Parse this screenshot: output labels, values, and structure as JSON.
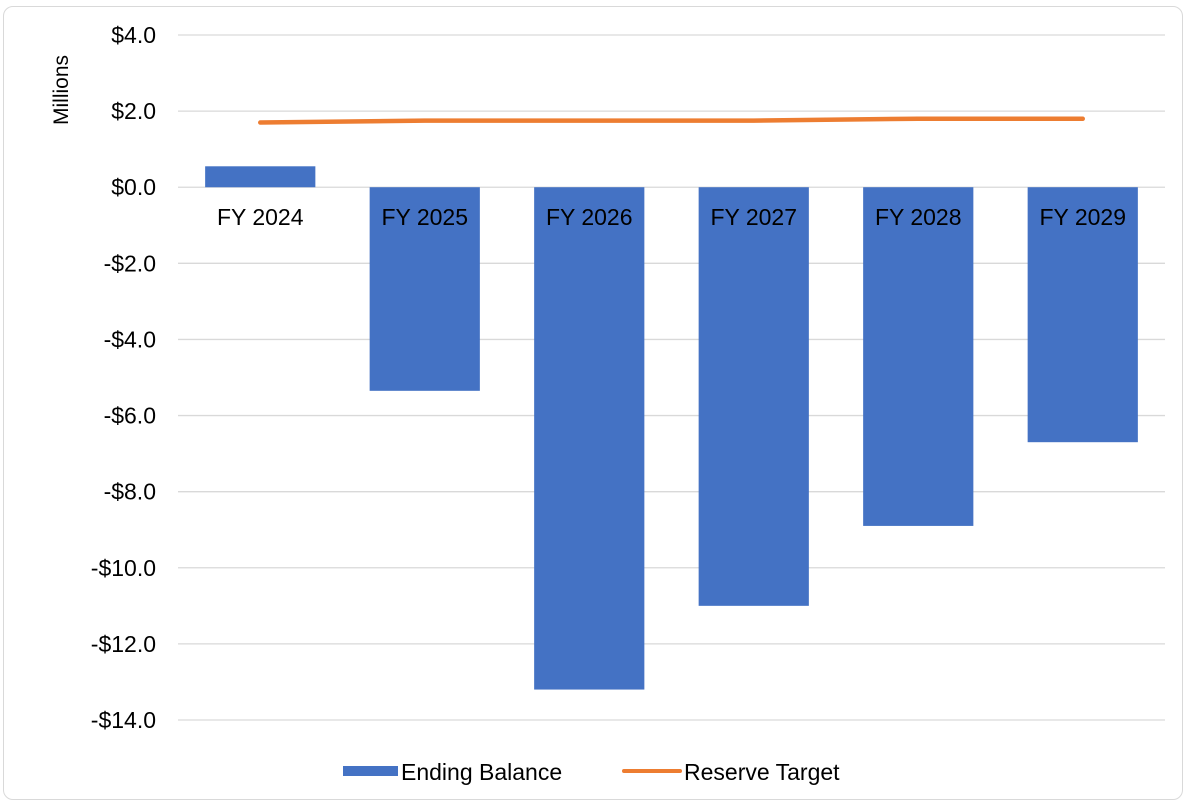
{
  "chart_data": {
    "type": "bar",
    "ylabel": "Millions",
    "categories": [
      "FY 2024",
      "FY 2025",
      "FY 2026",
      "FY 2027",
      "FY 2028",
      "FY 2029"
    ],
    "ylim": [
      -14,
      4
    ],
    "yticks": [
      4,
      2,
      0,
      -2,
      -4,
      -6,
      -8,
      -10,
      -12,
      -14
    ],
    "ytick_labels": [
      "$4.0",
      "$2.0",
      "$0.0",
      "-$2.0",
      "-$4.0",
      "-$6.0",
      "-$8.0",
      "-$10.0",
      "-$12.0",
      "-$14.0"
    ],
    "grid": true,
    "legend_position": "bottom",
    "series": [
      {
        "name": "Ending Balance",
        "kind": "bar",
        "color": "#4472c4",
        "values": [
          0.55,
          -5.35,
          -13.2,
          -11.0,
          -8.9,
          -6.7
        ]
      },
      {
        "name": "Reserve Target",
        "kind": "line",
        "color": "#ed7d31",
        "values": [
          1.7,
          1.75,
          1.75,
          1.75,
          1.8,
          1.8
        ]
      }
    ]
  }
}
